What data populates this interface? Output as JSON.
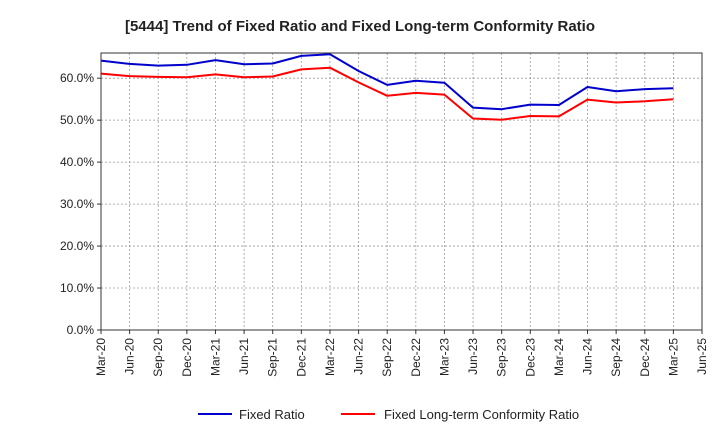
{
  "chart_data": {
    "type": "line",
    "title": "[5444]  Trend of Fixed Ratio and Fixed Long-term Conformity Ratio",
    "xlabel": "",
    "ylabel": "",
    "ylim": [
      0,
      66
    ],
    "yticks": [
      0,
      10,
      20,
      30,
      40,
      50,
      60
    ],
    "ytick_labels": [
      "0.0%",
      "10.0%",
      "20.0%",
      "30.0%",
      "40.0%",
      "50.0%",
      "60.0%"
    ],
    "xtick_labels": [
      "Mar-20",
      "Jun-20",
      "Sep-20",
      "Dec-20",
      "Mar-21",
      "Jun-21",
      "Sep-21",
      "Dec-21",
      "Mar-22",
      "Jun-22",
      "Sep-22",
      "Dec-22",
      "Mar-23",
      "Jun-23",
      "Sep-23",
      "Dec-23",
      "Mar-24",
      "Jun-24",
      "Sep-24",
      "Dec-24",
      "Mar-25",
      "Jun-25"
    ],
    "x": [
      "Mar-20",
      "Jun-20",
      "Sep-20",
      "Dec-20",
      "Mar-21",
      "Jun-21",
      "Sep-21",
      "Dec-21",
      "Mar-22",
      "Jun-22",
      "Sep-22",
      "Dec-22",
      "Mar-23",
      "Jun-23",
      "Sep-23",
      "Dec-23",
      "Mar-24",
      "Jun-24",
      "Sep-24",
      "Dec-24",
      "Mar-25"
    ],
    "grid": true,
    "legend_position": "bottom",
    "series": [
      {
        "name": "Fixed Ratio",
        "color": "#0000cc",
        "values": [
          64.2,
          63.4,
          63.0,
          63.2,
          64.3,
          63.3,
          63.5,
          65.3,
          65.7,
          61.7,
          58.4,
          59.4,
          58.9,
          53.0,
          52.6,
          53.7,
          53.6,
          57.9,
          56.9,
          57.4,
          57.6
        ]
      },
      {
        "name": "Fixed Long-term Conformity Ratio",
        "color": "#ff0000",
        "values": [
          61.1,
          60.5,
          60.3,
          60.2,
          60.9,
          60.2,
          60.4,
          62.1,
          62.5,
          59.0,
          55.8,
          56.5,
          56.1,
          50.4,
          50.1,
          51.0,
          50.9,
          54.9,
          54.2,
          54.5,
          55.0
        ]
      }
    ]
  }
}
